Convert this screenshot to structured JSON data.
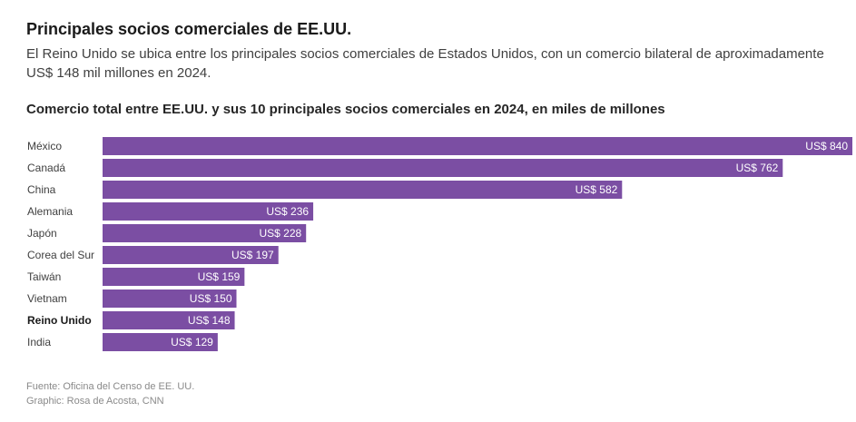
{
  "header": {
    "title": "Principales socios comerciales de EE.UU.",
    "subtitle": "El Reino Unido se ubica entre los principales socios comerciales de Estados Unidos, con un comercio bilateral de aproximadamente US$ 148 mil millones en 2024."
  },
  "chart_data": {
    "type": "bar",
    "orientation": "horizontal",
    "title": "Comercio total entre EE.UU. y sus 10 principales socios comerciales en 2024, en miles de millones",
    "categories": [
      "México",
      "Canadá",
      "China",
      "Alemania",
      "Japón",
      "Corea del Sur",
      "Taiwán",
      "Vietnam",
      "Reino Unido",
      "India"
    ],
    "values": [
      840,
      762,
      582,
      236,
      228,
      197,
      159,
      150,
      148,
      129
    ],
    "value_labels": [
      "US$ 840",
      "US$ 762",
      "US$ 582",
      "US$ 236",
      "US$ 228",
      "US$ 197",
      "US$ 159",
      "US$ 150",
      "US$ 148",
      "US$ 129"
    ],
    "highlight_category": "Reino Unido",
    "xlim": [
      0,
      840
    ],
    "grid": false,
    "bar_color": "#7b4ea3",
    "label_color": "#ffffff"
  },
  "footer": {
    "source": "Fuente: Oficina del Censo de EE. UU.",
    "credit": "Graphic: Rosa de Acosta, CNN"
  }
}
